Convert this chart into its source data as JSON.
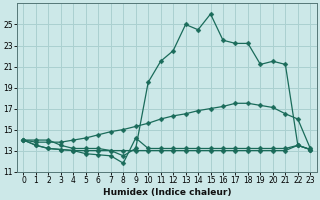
{
  "xlabel": "Humidex (Indice chaleur)",
  "x": [
    0,
    1,
    2,
    3,
    4,
    5,
    6,
    7,
    8,
    9,
    10,
    11,
    12,
    13,
    14,
    15,
    16,
    17,
    18,
    19,
    20,
    21,
    22,
    23
  ],
  "y_main": [
    14.0,
    14.0,
    14.0,
    13.5,
    13.2,
    13.2,
    13.2,
    13.0,
    12.5,
    13.2,
    19.5,
    21.5,
    22.5,
    25.0,
    24.5,
    26.0,
    23.5,
    23.2,
    23.2,
    21.2,
    21.5,
    21.2,
    13.5,
    13.1
  ],
  "y_diag": [
    14.0,
    13.8,
    13.8,
    13.8,
    14.0,
    14.2,
    14.5,
    14.8,
    15.0,
    15.3,
    15.6,
    16.0,
    16.3,
    16.5,
    16.8,
    17.0,
    17.2,
    17.5,
    17.5,
    17.3,
    17.1,
    16.5,
    16.0,
    13.2
  ],
  "y_jagged": [
    14.0,
    13.5,
    13.2,
    13.1,
    13.0,
    12.7,
    12.6,
    12.5,
    11.8,
    14.2,
    13.2,
    13.2,
    13.2,
    13.2,
    13.2,
    13.2,
    13.2,
    13.2,
    13.2,
    13.2,
    13.2,
    13.2,
    13.5,
    13.1
  ],
  "y_flat": [
    14.0,
    13.5,
    13.2,
    13.1,
    13.0,
    13.0,
    13.0,
    13.0,
    13.0,
    13.0,
    13.0,
    13.0,
    13.0,
    13.0,
    13.0,
    13.0,
    13.0,
    13.0,
    13.0,
    13.0,
    13.0,
    13.0,
    13.5,
    13.1
  ],
  "bg_color": "#cce8e8",
  "grid_color": "#aad0d0",
  "line_color": "#1a6b5a",
  "ylim": [
    11,
    27
  ],
  "yticks": [
    11,
    13,
    15,
    17,
    19,
    21,
    23,
    25
  ],
  "xlim": [
    -0.5,
    23.5
  ],
  "xticks": [
    0,
    1,
    2,
    3,
    4,
    5,
    6,
    7,
    8,
    9,
    10,
    11,
    12,
    13,
    14,
    15,
    16,
    17,
    18,
    19,
    20,
    21,
    22,
    23
  ]
}
